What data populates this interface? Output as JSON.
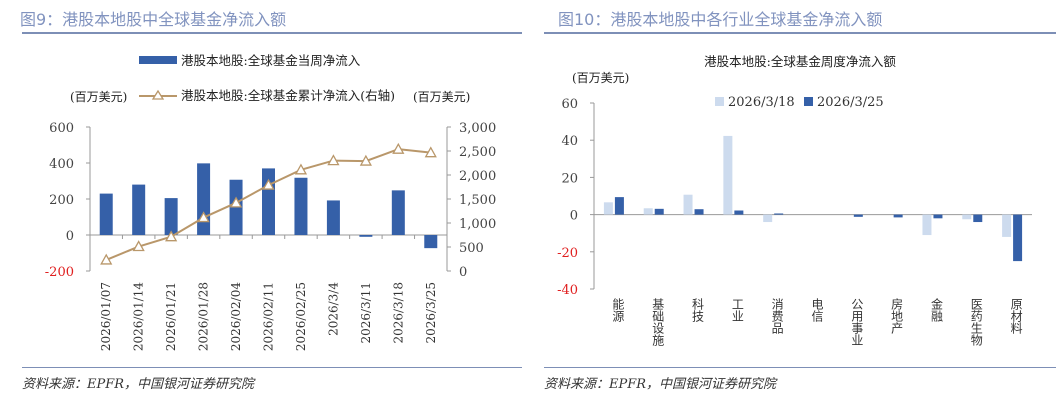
{
  "left": {
    "title": "图9：港股本地股中全球基金净流入额",
    "source": "资料来源：EPFR，中国银河证券研究院"
  },
  "right": {
    "title": "图10：港股本地股中各行业全球基金净流入额",
    "source": "资料来源：EPFR，中国银河证券研究院"
  },
  "chart_data": [
    {
      "type": "bar+line",
      "categories": [
        "2026/01/07",
        "2026/01/14",
        "2026/01/21",
        "2026/01/28",
        "2026/02/04",
        "2026/02/11",
        "2026/02/25",
        "2026/3/4",
        "2026/3/11",
        "2026/3/18",
        "2026/3/25"
      ],
      "series": [
        {
          "name": "港股本地股:全球基金当周净流入",
          "type": "bar",
          "axis": "left",
          "color": "#3560a8",
          "values": [
            230,
            280,
            205,
            398,
            307,
            370,
            318,
            192,
            -10,
            248,
            -73
          ]
        },
        {
          "name": "港股本地股:全球基金累计净流入(右轴)",
          "type": "line",
          "axis": "right",
          "color": "#b9976a",
          "marker": "triangle-open",
          "values": [
            230,
            510,
            715,
            1113,
            1420,
            1790,
            2108,
            2300,
            2290,
            2538,
            2465
          ]
        }
      ],
      "ylabel_left": "(百万美元)",
      "ylabel_right": "(百万美元)",
      "ylim_left": [
        -200,
        600
      ],
      "ylim_right": [
        0,
        3000
      ],
      "yticks_left": [
        "600",
        "400",
        "200",
        "0",
        "-200"
      ],
      "yticks_right": [
        "3,000",
        "2,500",
        "2,000",
        "1,500",
        "1,000",
        "500",
        "0"
      ],
      "negative_tick_color": "#e02020",
      "legend": "top"
    },
    {
      "type": "bar",
      "title": "港股本地股:全球基金周度净流入额",
      "categories": [
        "能源",
        "基础设施",
        "科技",
        "工业",
        "消费品",
        "电信",
        "公用事业",
        "房地产",
        "金融",
        "医药生物",
        "原材料"
      ],
      "series": [
        {
          "name": "2026/3/18",
          "color": "#cddbee",
          "values": [
            6.6,
            3.4,
            10.7,
            42.3,
            -4,
            0,
            0,
            0,
            -11,
            -2.5,
            -12
          ]
        },
        {
          "name": "2026/3/25",
          "color": "#3560a8",
          "values": [
            9.4,
            3.1,
            2.9,
            2.2,
            0.6,
            0,
            -1.2,
            -1.5,
            -2,
            -4,
            -25
          ]
        }
      ],
      "ylabel": "(百万美元)",
      "ylim": [
        -40,
        60
      ],
      "yticks": [
        "60",
        "40",
        "20",
        "0",
        "-20",
        "-40"
      ],
      "negative_tick_color": "#e02020",
      "legend": "top"
    }
  ]
}
